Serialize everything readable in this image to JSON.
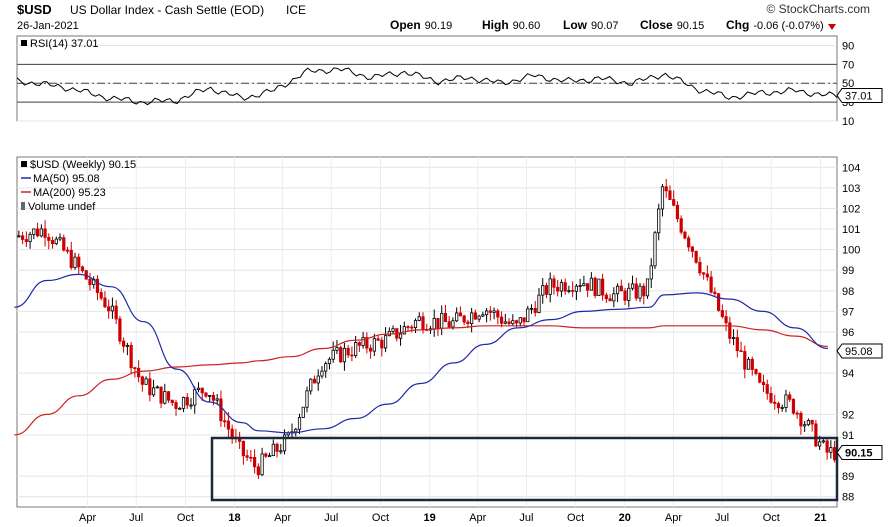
{
  "header": {
    "symbol": "$USD",
    "name": "US Dollar Index - Cash Settle (EOD)",
    "exchange": "ICE",
    "date": "26-Jan-2021",
    "copyright": "© StockCharts.com",
    "ohlc": [
      {
        "label": "Open",
        "value": "90.19"
      },
      {
        "label": "High",
        "value": "90.60"
      },
      {
        "label": "Low",
        "value": "90.07"
      },
      {
        "label": "Close",
        "value": "90.15"
      },
      {
        "label": "Chg",
        "value": "-0.06 (-0.07%)"
      }
    ]
  },
  "colors": {
    "up": "#000000",
    "down": "#cc0000",
    "ma50": "#1f2aa6",
    "ma200": "#cc2222",
    "box": "#1b2a3a"
  },
  "chart_data": [
    {
      "type": "line",
      "panel": "rsi",
      "label": "RSI(14) 37.01",
      "current_value_label": "37.01",
      "ylim": [
        10,
        100
      ],
      "yticks": [
        "90",
        "70",
        "50",
        "30",
        "10"
      ],
      "reference_lines": [
        70,
        50,
        30
      ],
      "x": [
        "2016-11",
        "2017-02",
        "2017-05",
        "2017-07",
        "2017-09",
        "2017-11",
        "2018-01",
        "2018-03",
        "2018-05",
        "2018-07",
        "2018-09",
        "2018-11",
        "2019-01",
        "2019-03",
        "2019-05",
        "2019-07",
        "2019-09",
        "2019-11",
        "2020-01",
        "2020-03",
        "2020-05",
        "2020-07",
        "2020-09",
        "2020-11",
        "2021-01"
      ],
      "values": [
        53,
        46,
        34,
        30,
        32,
        45,
        34,
        42,
        62,
        65,
        56,
        62,
        52,
        56,
        50,
        58,
        52,
        55,
        50,
        60,
        44,
        35,
        40,
        42,
        37
      ]
    },
    {
      "type": "candlestick",
      "panel": "price",
      "label": "$USD (Weekly) 90.15",
      "legend": [
        "MA(50) 95.08",
        "MA(200) 95.23",
        "Volume undef"
      ],
      "current_value_label": "90.15",
      "ma_value_label": "95.08",
      "ylim": [
        88,
        104
      ],
      "yticks": [
        "104",
        "103",
        "102",
        "101",
        "100",
        "99",
        "98",
        "97",
        "96",
        "94",
        "92",
        "91",
        "89",
        "88"
      ],
      "xticks": [
        "Apr",
        "Jul",
        "Oct",
        "18",
        "Apr",
        "Jul",
        "Oct",
        "19",
        "Apr",
        "Jul",
        "Oct",
        "20",
        "Apr",
        "Jul",
        "Oct",
        "21"
      ],
      "x": [
        "2016-11",
        "2017-01",
        "2017-03",
        "2017-05",
        "2017-07",
        "2017-09",
        "2017-11",
        "2018-01",
        "2018-02",
        "2018-04",
        "2018-06",
        "2018-08",
        "2018-10",
        "2018-12",
        "2019-02",
        "2019-04",
        "2019-06",
        "2019-08",
        "2019-10",
        "2019-12",
        "2020-02",
        "2020-03",
        "2020-05",
        "2020-07",
        "2020-09",
        "2020-11",
        "2021-01"
      ],
      "close": [
        100.6,
        101.0,
        99.2,
        97.2,
        93.5,
        92.5,
        93.3,
        90.2,
        89.4,
        90.8,
        94.5,
        95.2,
        95.6,
        96.6,
        96.4,
        97.2,
        96.2,
        98.2,
        98.5,
        97.8,
        98.0,
        103.0,
        99.8,
        96.0,
        93.2,
        92.4,
        90.15
      ],
      "ma50": [
        97.2,
        98.5,
        98.8,
        98.2,
        96.5,
        94.2,
        92.6,
        91.6,
        91.2,
        91.1,
        91.3,
        91.8,
        92.5,
        93.5,
        94.5,
        95.4,
        96.2,
        96.6,
        97.0,
        97.1,
        97.2,
        97.8,
        97.9,
        97.6,
        97.0,
        96.2,
        95.2
      ],
      "ma200": [
        91.0,
        92.0,
        92.9,
        93.7,
        94.1,
        94.3,
        94.4,
        94.5,
        94.6,
        94.8,
        95.2,
        95.6,
        95.9,
        96.1,
        96.2,
        96.3,
        96.3,
        96.3,
        96.2,
        96.2,
        96.2,
        96.3,
        96.3,
        96.3,
        96.1,
        95.8,
        95.3
      ]
    }
  ]
}
